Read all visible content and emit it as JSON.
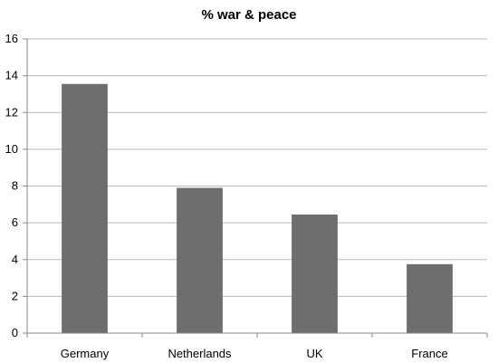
{
  "chart_data": {
    "type": "bar",
    "title": "% war & peace",
    "categories": [
      "Germany",
      "Netherlands",
      "UK",
      "France"
    ],
    "values": [
      13.55,
      7.9,
      6.45,
      3.75
    ],
    "ylim": [
      0,
      16
    ],
    "yticks": [
      "0",
      "2",
      "4",
      "6",
      "8",
      "10",
      "12",
      "14",
      "16"
    ],
    "grid": true,
    "legend": "none",
    "bar_color": "#6e6e6e",
    "grid_color": "#b8b8b8"
  }
}
